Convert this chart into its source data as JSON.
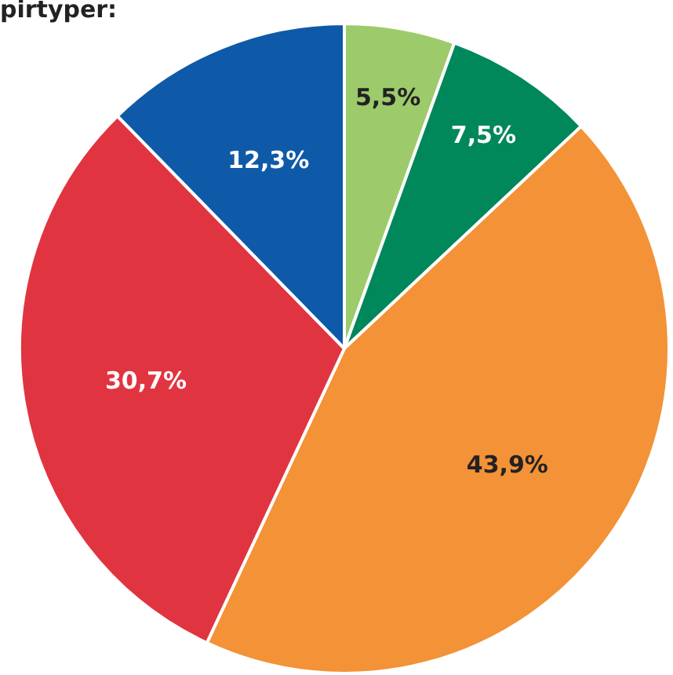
{
  "chart_data": {
    "type": "pie",
    "title": "pirtyper:",
    "categories": [
      null,
      null,
      null,
      null,
      null
    ],
    "values": [
      5.5,
      7.5,
      43.9,
      30.7,
      12.3
    ],
    "value_labels": [
      "5,5%",
      "7,5%",
      "43,9%",
      "30,7%",
      "12,3%"
    ],
    "colors": [
      "#9dcb6b",
      "#00875a",
      "#f39237",
      "#e03540",
      "#0f5aa8"
    ],
    "legend": false
  }
}
